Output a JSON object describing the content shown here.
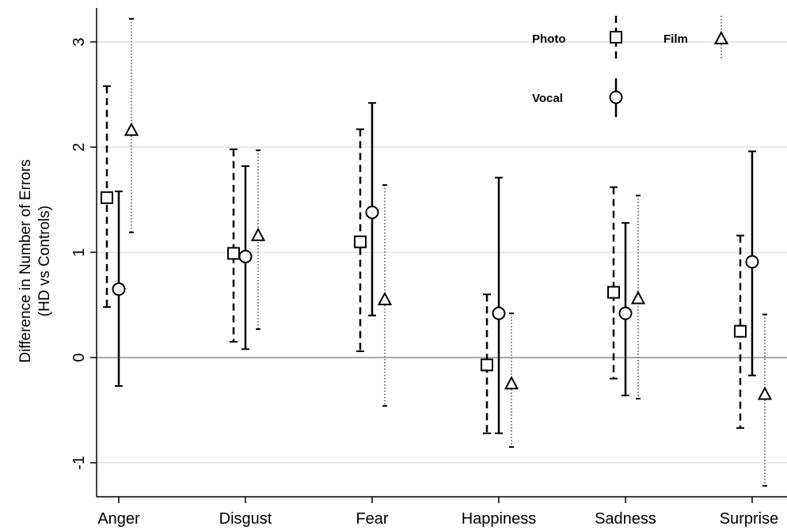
{
  "chart_data": {
    "type": "errorbar",
    "categories": [
      "Anger",
      "Disgust",
      "Fear",
      "Happiness",
      "Sadness",
      "Surprise"
    ],
    "ylabel_line1": "Difference in Number of Errors",
    "ylabel_line2": "(HD vs Controls)",
    "ylim": [
      -1.3,
      3.3
    ],
    "yticks": [
      -1,
      0,
      1,
      2,
      3
    ],
    "grid": true,
    "legend_position": "top-right",
    "series": [
      {
        "name": "Photo",
        "marker": "square",
        "line": "dashed",
        "estimates": [
          1.52,
          0.99,
          1.1,
          -0.07,
          0.62,
          0.25
        ],
        "lower": [
          0.48,
          0.15,
          0.06,
          -0.72,
          -0.2,
          -0.67
        ],
        "upper": [
          2.58,
          1.98,
          2.17,
          0.6,
          1.62,
          1.16
        ]
      },
      {
        "name": "Vocal",
        "marker": "circle",
        "line": "solid",
        "estimates": [
          0.65,
          0.96,
          1.38,
          0.42,
          0.42,
          0.91
        ],
        "lower": [
          -0.27,
          0.08,
          0.4,
          -0.72,
          -0.36,
          -0.17
        ],
        "upper": [
          1.58,
          1.82,
          2.42,
          1.71,
          1.28,
          1.96
        ]
      },
      {
        "name": "Film",
        "marker": "triangle",
        "line": "dotted",
        "estimates": [
          2.16,
          1.16,
          0.55,
          -0.25,
          0.56,
          -0.35
        ],
        "lower": [
          1.19,
          0.27,
          -0.46,
          -0.85,
          -0.39,
          -1.22
        ],
        "upper": [
          3.22,
          1.97,
          1.64,
          0.42,
          1.54,
          0.41
        ]
      }
    ]
  }
}
